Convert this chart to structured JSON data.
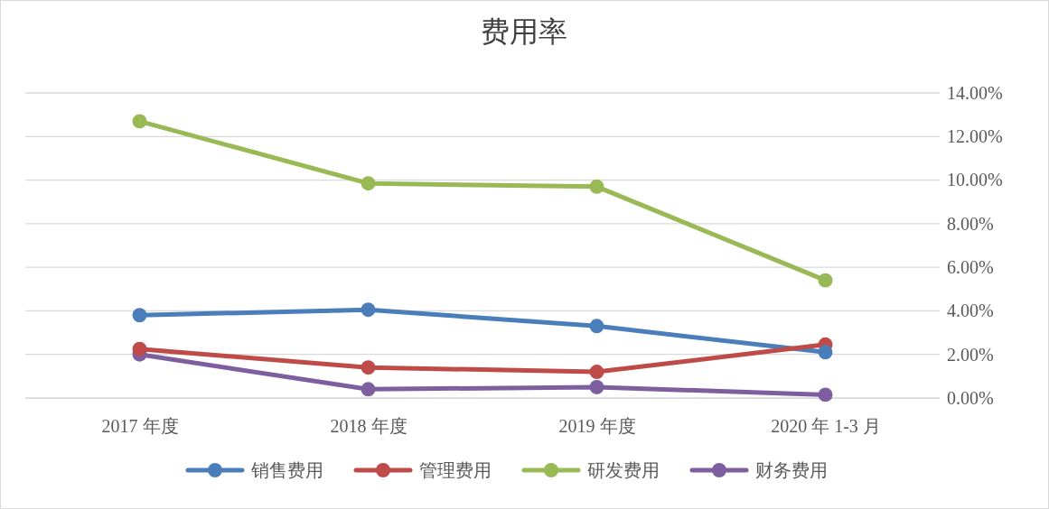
{
  "chart_data": {
    "type": "line",
    "title": "费用率",
    "categories": [
      "2017 年度",
      "2018 年度",
      "2019 年度",
      "2020 年 1-3 月"
    ],
    "series": [
      {
        "name": "销售费用",
        "color": "#4a7ebb",
        "values": [
          3.8,
          4.05,
          3.3,
          2.1
        ]
      },
      {
        "name": "管理费用",
        "color": "#be4b48",
        "values": [
          2.25,
          1.4,
          1.2,
          2.45
        ]
      },
      {
        "name": "研发费用",
        "color": "#98b954",
        "values": [
          12.7,
          9.85,
          9.7,
          5.4
        ]
      },
      {
        "name": "财务费用",
        "color": "#7d5fa0",
        "values": [
          2.0,
          0.4,
          0.5,
          0.15
        ]
      }
    ],
    "ylim": [
      0,
      14
    ],
    "yticks": [
      {
        "value": 0,
        "label": "0.00%"
      },
      {
        "value": 2,
        "label": "2.00%"
      },
      {
        "value": 4,
        "label": "4.00%"
      },
      {
        "value": 6,
        "label": "6.00%"
      },
      {
        "value": 8,
        "label": "8.00%"
      },
      {
        "value": 10,
        "label": "10.00%"
      },
      {
        "value": 12,
        "label": "12.00%"
      },
      {
        "value": 14,
        "label": "14.00%"
      }
    ],
    "grid": "y",
    "legend": "bottom",
    "marker": "circle",
    "line_style": "solid"
  }
}
